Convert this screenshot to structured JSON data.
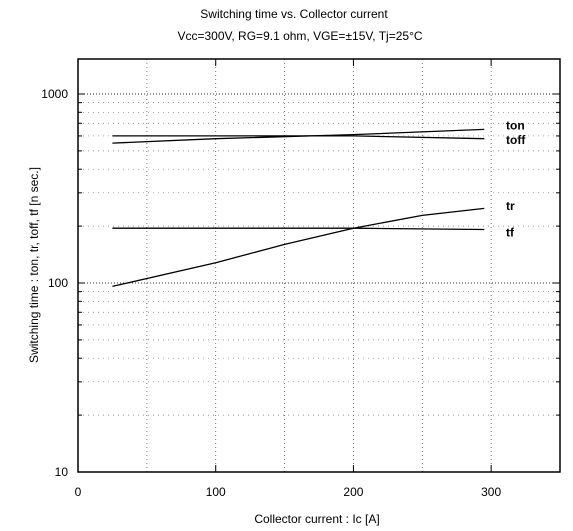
{
  "chart_data": {
    "type": "line",
    "title": "Switching time  vs. Collector current",
    "subtitle": "Vcc=300V, RG=9.1 ohm, VGE=±15V, Tj=25°C",
    "xlabel": "Collector  current  :  Ic [A]",
    "ylabel": "Switching  time  :  ton, tr,  toff,  tf  [n sec.]",
    "xlim": [
      0,
      350
    ],
    "ylim": [
      10,
      1000
    ],
    "yscale": "log",
    "grid": true,
    "xticks": [
      {
        "value": 0,
        "label": "0"
      },
      {
        "value": 100,
        "label": "100"
      },
      {
        "value": 200,
        "label": "200"
      },
      {
        "value": 300,
        "label": "300"
      }
    ],
    "yticks": [
      {
        "value": 10,
        "label": "10"
      },
      {
        "value": 100,
        "label": "100"
      },
      {
        "value": 1000,
        "label": "1000"
      }
    ],
    "series": [
      {
        "name": "ton",
        "x": [
          25,
          100,
          200,
          295
        ],
        "y": [
          550,
          580,
          610,
          650
        ]
      },
      {
        "name": "toff",
        "x": [
          25,
          100,
          200,
          295
        ],
        "y": [
          600,
          600,
          600,
          580
        ]
      },
      {
        "name": "tr",
        "x": [
          25,
          100,
          150,
          200,
          250,
          295
        ],
        "y": [
          96,
          128,
          160,
          195,
          228,
          248
        ]
      },
      {
        "name": "tf",
        "x": [
          25,
          100,
          200,
          295
        ],
        "y": [
          195,
          195,
          195,
          192
        ]
      }
    ],
    "series_label_positions": {
      "ton": 680,
      "toff": 570,
      "tr": 255,
      "tf": 185
    }
  }
}
